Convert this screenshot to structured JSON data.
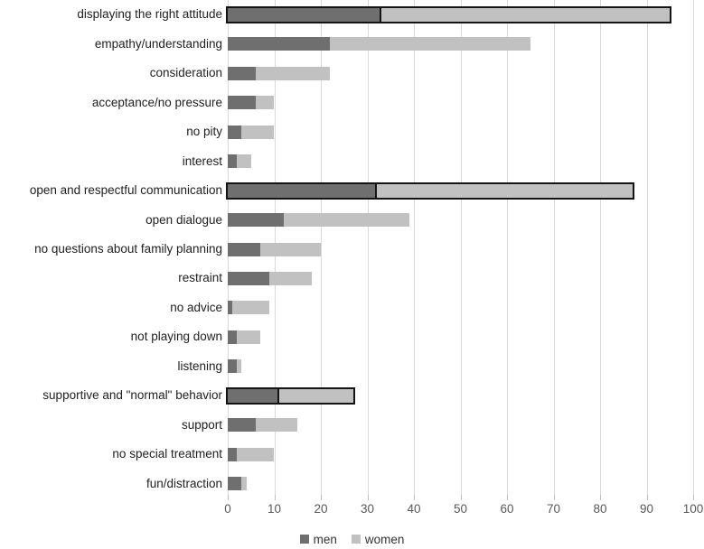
{
  "chart_data": {
    "type": "bar",
    "orientation": "horizontal",
    "stacked": true,
    "title": "",
    "xlabel": "",
    "ylabel": "",
    "xlim": [
      0,
      100
    ],
    "xticks": [
      0,
      10,
      20,
      30,
      40,
      50,
      60,
      70,
      80,
      90,
      100
    ],
    "grid": true,
    "legend_position": "bottom-center",
    "categories": [
      "displaying the right attitude",
      "empathy/understanding",
      "consideration",
      "acceptance/no pressure",
      "no pity",
      "interest",
      "open and respectful communication",
      "open dialogue",
      "no questions about family planning",
      "restraint",
      "no advice",
      "not playing down",
      "listening",
      "supportive and \"normal\" behavior",
      "support",
      "no special treatment",
      "fun/distraction"
    ],
    "series": [
      {
        "name": "men",
        "color": "#6f6f6f",
        "values": [
          33,
          22,
          6,
          6,
          3,
          2,
          32,
          12,
          7,
          9,
          1,
          2,
          2,
          11,
          6,
          2,
          3
        ]
      },
      {
        "name": "women",
        "color": "#c1c1c1",
        "values": [
          62,
          43,
          16,
          4,
          7,
          3,
          55,
          27,
          13,
          9,
          8,
          5,
          1,
          16,
          9,
          8,
          1
        ]
      }
    ],
    "stacked_totals": [
      95,
      65,
      22,
      10,
      10,
      5,
      87,
      39,
      20,
      18,
      9,
      7,
      3,
      27,
      15,
      10,
      4
    ],
    "emphasized_rows": [
      0,
      6,
      13
    ],
    "emphasis_style": "black-outline"
  },
  "legend": {
    "items": [
      {
        "label": "men",
        "color": "#6f6f6f"
      },
      {
        "label": "women",
        "color": "#c1c1c1"
      }
    ]
  },
  "colors": {
    "background": "#ffffff",
    "gridline": "#d9d9d9",
    "tick": "#bfbfbf",
    "tick_label": "#595959",
    "category_label": "#212121",
    "emphasis_border": "#141414"
  }
}
